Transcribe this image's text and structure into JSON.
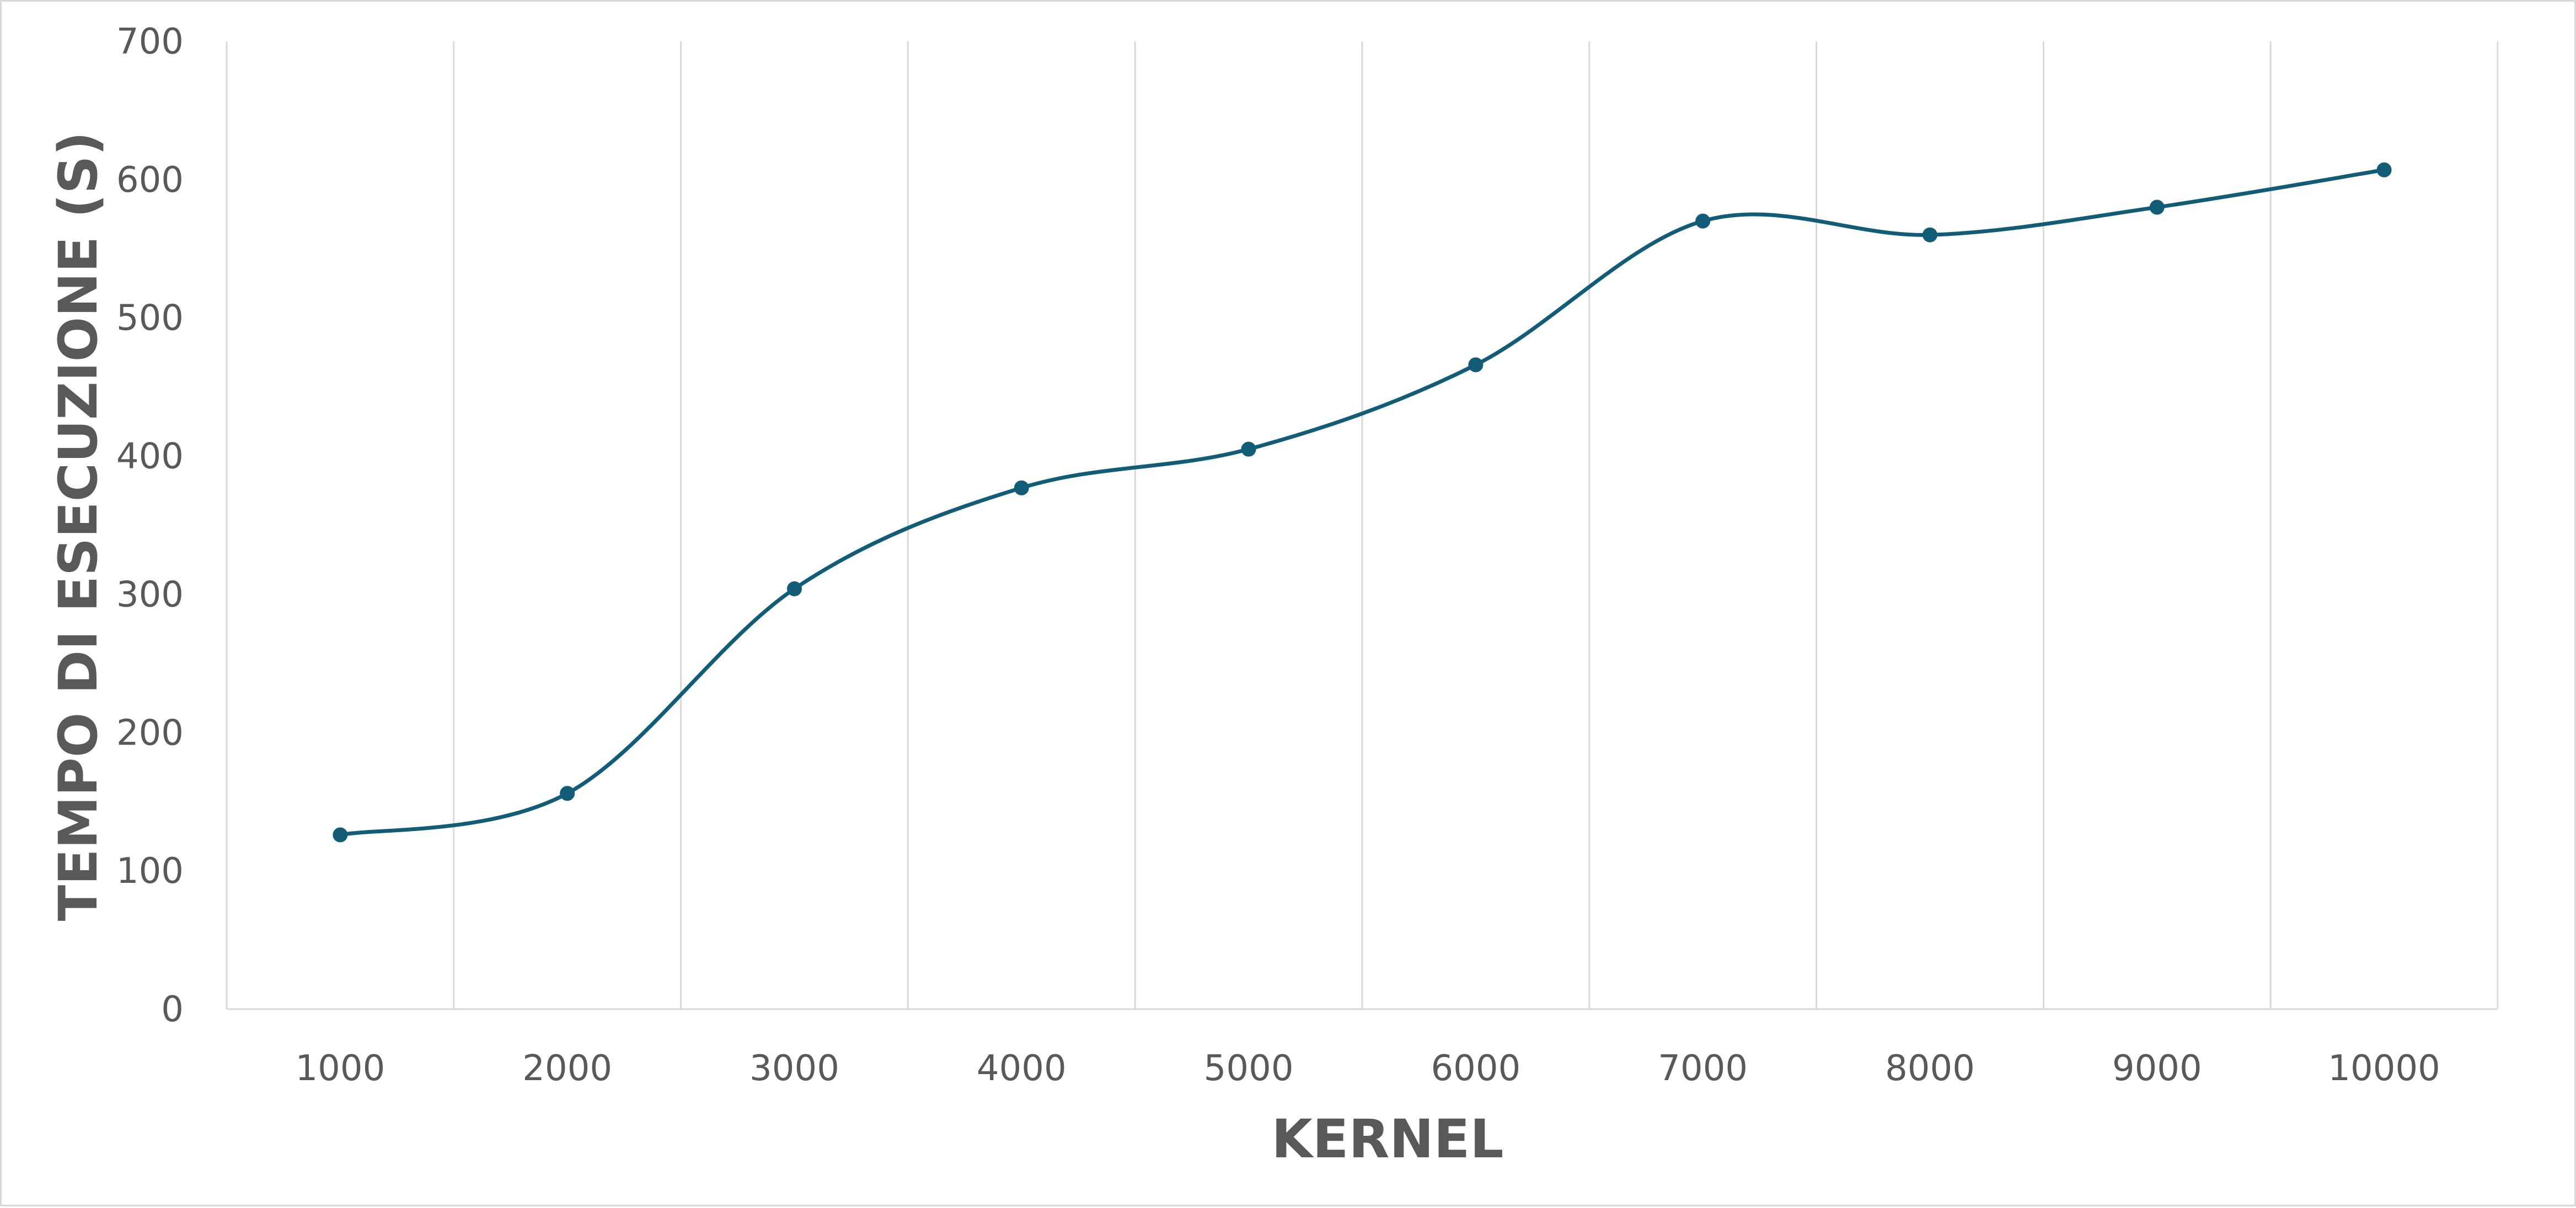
{
  "chart_data": {
    "type": "line",
    "smooth": true,
    "markers": true,
    "title": "",
    "xlabel": "KERNEL",
    "ylabel": "TEMPO DI ESECUZIONE (S)",
    "categories": [
      "1000",
      "2000",
      "3000",
      "4000",
      "5000",
      "6000",
      "7000",
      "8000",
      "9000",
      "10000"
    ],
    "series": [
      {
        "values": [
          126,
          156,
          304,
          377,
          405,
          466,
          570,
          560,
          580,
          607
        ],
        "color": "#135c78"
      }
    ],
    "ylim": [
      0,
      700
    ],
    "yticks": [
      0,
      100,
      200,
      300,
      400,
      500,
      600,
      700
    ],
    "grid": "vertical",
    "legend": "none"
  }
}
